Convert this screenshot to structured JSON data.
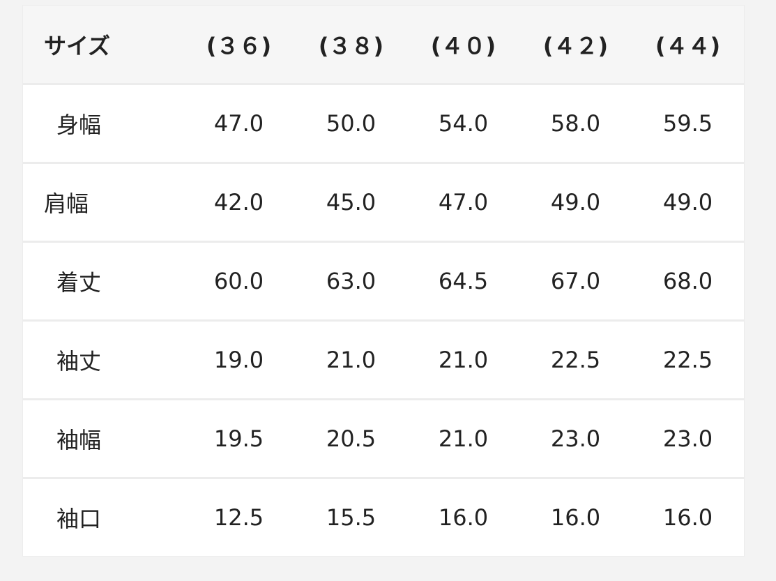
{
  "header": {
    "label": "サイズ",
    "sizes": [
      "(３６)",
      "(３８)",
      "(４０)",
      "(４２)",
      "(４４)"
    ]
  },
  "rows": [
    {
      "label": "身幅",
      "values": [
        "47.0",
        "50.0",
        "54.0",
        "58.0",
        "59.5"
      ]
    },
    {
      "label": "肩幅",
      "values": [
        "42.0",
        "45.0",
        "47.0",
        "49.0",
        "49.0"
      ]
    },
    {
      "label": "着丈",
      "values": [
        "60.0",
        "63.0",
        "64.5",
        "67.0",
        "68.0"
      ]
    },
    {
      "label": "袖丈",
      "values": [
        "19.0",
        "21.0",
        "21.0",
        "22.5",
        "22.5"
      ]
    },
    {
      "label": "袖幅",
      "values": [
        "19.5",
        "20.5",
        "21.0",
        "23.0",
        "23.0"
      ]
    },
    {
      "label": "袖口",
      "values": [
        "12.5",
        "15.5",
        "16.0",
        "16.0",
        "16.0"
      ]
    }
  ]
}
